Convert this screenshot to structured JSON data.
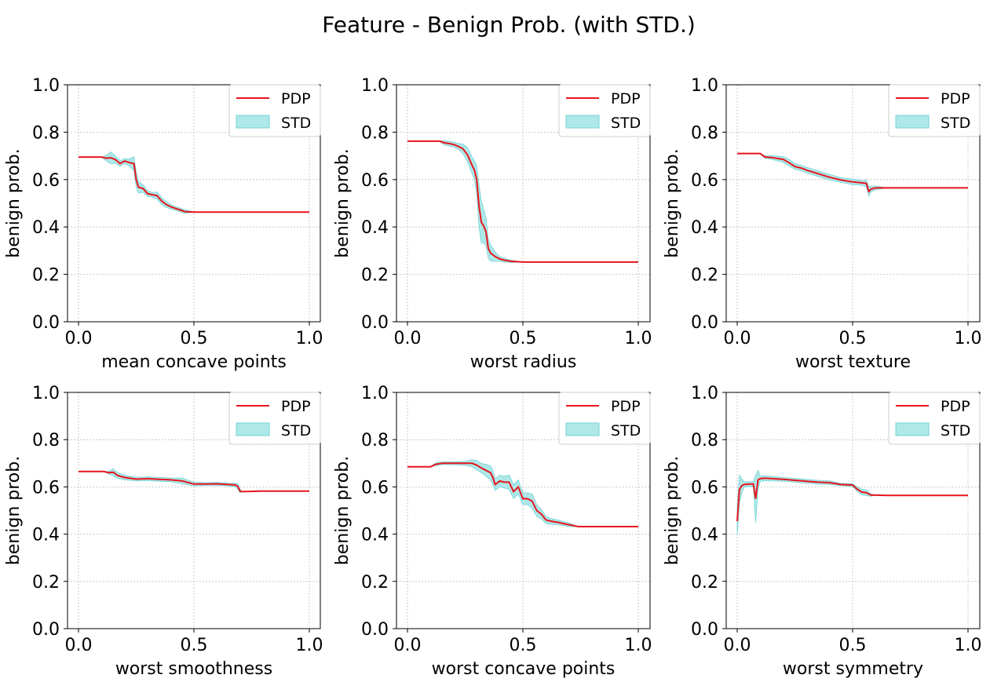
{
  "figure": {
    "title": "Feature - Benign Prob. (with STD.)"
  },
  "legend": {
    "pdp_label": "PDP",
    "std_label": "STD",
    "placement": "top-right"
  },
  "colors": {
    "pdp_line": "#e8141c",
    "std_fill": "#aee8e8",
    "std_edge": "#76d2d6",
    "axes": "#000000",
    "grid": "#bdbdbd"
  },
  "chart_data": [
    {
      "type": "line",
      "xlabel": "mean concave points",
      "ylabel": "benign prob.",
      "xlim": [
        0.0,
        1.0
      ],
      "ylim": [
        0.0,
        1.0
      ],
      "xticks": [
        "0.0",
        "0.5",
        "1.0"
      ],
      "yticks": [
        "0.0",
        "0.2",
        "0.4",
        "0.6",
        "0.8",
        "1.0"
      ],
      "grid": true,
      "series": [
        {
          "name": "PDP",
          "x": [
            0.0,
            0.1,
            0.12,
            0.14,
            0.16,
            0.18,
            0.2,
            0.22,
            0.24,
            0.25,
            0.26,
            0.28,
            0.3,
            0.32,
            0.34,
            0.36,
            0.38,
            0.4,
            0.42,
            0.44,
            0.46,
            0.5,
            1.0
          ],
          "y": [
            0.695,
            0.695,
            0.69,
            0.692,
            0.684,
            0.668,
            0.678,
            0.672,
            0.667,
            0.6,
            0.568,
            0.562,
            0.54,
            0.536,
            0.532,
            0.51,
            0.495,
            0.485,
            0.478,
            0.472,
            0.465,
            0.463,
            0.463
          ],
          "std": [
            0.0,
            0.0,
            0.012,
            0.025,
            0.015,
            0.012,
            0.01,
            0.015,
            0.03,
            0.03,
            0.025,
            0.015,
            0.012,
            0.01,
            0.015,
            0.015,
            0.012,
            0.01,
            0.008,
            0.008,
            0.008,
            0.0,
            0.0
          ]
        }
      ]
    },
    {
      "type": "line",
      "xlabel": "worst radius",
      "ylabel": "benign prob.",
      "xlim": [
        0.0,
        1.0
      ],
      "ylim": [
        0.0,
        1.0
      ],
      "xticks": [
        "0.0",
        "0.5",
        "1.0"
      ],
      "yticks": [
        "0.0",
        "0.2",
        "0.4",
        "0.6",
        "0.8",
        "1.0"
      ],
      "grid": true,
      "series": [
        {
          "name": "PDP",
          "x": [
            0.0,
            0.14,
            0.16,
            0.18,
            0.2,
            0.22,
            0.24,
            0.26,
            0.28,
            0.29,
            0.3,
            0.31,
            0.32,
            0.33,
            0.34,
            0.35,
            0.36,
            0.38,
            0.4,
            0.42,
            0.45,
            0.5,
            1.0
          ],
          "y": [
            0.762,
            0.762,
            0.755,
            0.752,
            0.748,
            0.74,
            0.73,
            0.705,
            0.66,
            0.64,
            0.6,
            0.49,
            0.42,
            0.405,
            0.38,
            0.31,
            0.29,
            0.275,
            0.265,
            0.26,
            0.255,
            0.252,
            0.252
          ],
          "std": [
            0.0,
            0.0,
            0.01,
            0.01,
            0.01,
            0.012,
            0.02,
            0.03,
            0.035,
            0.04,
            0.06,
            0.09,
            0.09,
            0.07,
            0.06,
            0.04,
            0.035,
            0.02,
            0.01,
            0.008,
            0.005,
            0.0,
            0.0
          ]
        }
      ]
    },
    {
      "type": "line",
      "xlabel": "worst texture",
      "ylabel": "benign prob.",
      "xlim": [
        0.0,
        1.0
      ],
      "ylim": [
        0.0,
        1.0
      ],
      "xticks": [
        "0.0",
        "0.5",
        "1.0"
      ],
      "yticks": [
        "0.0",
        "0.2",
        "0.4",
        "0.6",
        "0.8",
        "1.0"
      ],
      "grid": true,
      "series": [
        {
          "name": "PDP",
          "x": [
            0.0,
            0.1,
            0.12,
            0.15,
            0.2,
            0.23,
            0.25,
            0.28,
            0.3,
            0.35,
            0.4,
            0.45,
            0.5,
            0.55,
            0.56,
            0.57,
            0.58,
            0.6,
            0.65,
            1.0
          ],
          "y": [
            0.71,
            0.71,
            0.695,
            0.693,
            0.685,
            0.668,
            0.655,
            0.648,
            0.64,
            0.625,
            0.61,
            0.598,
            0.59,
            0.585,
            0.583,
            0.55,
            0.56,
            0.565,
            0.565,
            0.565
          ],
          "std": [
            0.0,
            0.0,
            0.005,
            0.008,
            0.012,
            0.014,
            0.012,
            0.012,
            0.012,
            0.012,
            0.012,
            0.01,
            0.012,
            0.01,
            0.015,
            0.02,
            0.012,
            0.008,
            0.0,
            0.0
          ]
        }
      ]
    },
    {
      "type": "line",
      "xlabel": "worst smoothness",
      "ylabel": "benign prob.",
      "xlim": [
        0.0,
        1.0
      ],
      "ylim": [
        0.0,
        1.0
      ],
      "xticks": [
        "0.0",
        "0.5",
        "1.0"
      ],
      "yticks": [
        "0.0",
        "0.2",
        "0.4",
        "0.6",
        "0.8",
        "1.0"
      ],
      "grid": true,
      "series": [
        {
          "name": "PDP",
          "x": [
            0.0,
            0.11,
            0.13,
            0.15,
            0.17,
            0.2,
            0.25,
            0.3,
            0.35,
            0.4,
            0.45,
            0.5,
            0.55,
            0.6,
            0.65,
            0.68,
            0.69,
            0.7,
            0.71,
            0.8,
            1.0
          ],
          "y": [
            0.665,
            0.665,
            0.66,
            0.662,
            0.648,
            0.64,
            0.633,
            0.635,
            0.632,
            0.63,
            0.625,
            0.612,
            0.612,
            0.613,
            0.61,
            0.608,
            0.602,
            0.582,
            0.58,
            0.582,
            0.582
          ],
          "std": [
            0.0,
            0.0,
            0.005,
            0.015,
            0.012,
            0.01,
            0.008,
            0.008,
            0.008,
            0.008,
            0.012,
            0.008,
            0.006,
            0.006,
            0.006,
            0.008,
            0.012,
            0.008,
            0.0,
            0.0,
            0.0
          ]
        }
      ]
    },
    {
      "type": "line",
      "xlabel": "worst concave points",
      "ylabel": "benign prob.",
      "xlim": [
        0.0,
        1.0
      ],
      "ylim": [
        0.0,
        1.0
      ],
      "xticks": [
        "0.0",
        "0.5",
        "1.0"
      ],
      "yticks": [
        "0.0",
        "0.2",
        "0.4",
        "0.6",
        "0.8",
        "1.0"
      ],
      "grid": true,
      "series": [
        {
          "name": "PDP",
          "x": [
            0.0,
            0.1,
            0.12,
            0.15,
            0.2,
            0.25,
            0.28,
            0.3,
            0.32,
            0.34,
            0.36,
            0.37,
            0.38,
            0.4,
            0.42,
            0.44,
            0.46,
            0.48,
            0.5,
            0.52,
            0.54,
            0.56,
            0.58,
            0.6,
            0.62,
            0.65,
            0.7,
            0.74,
            1.0
          ],
          "y": [
            0.685,
            0.685,
            0.695,
            0.7,
            0.7,
            0.7,
            0.7,
            0.692,
            0.68,
            0.67,
            0.66,
            0.64,
            0.61,
            0.625,
            0.62,
            0.62,
            0.58,
            0.6,
            0.55,
            0.55,
            0.54,
            0.5,
            0.485,
            0.46,
            0.455,
            0.45,
            0.44,
            0.432,
            0.432
          ],
          "std": [
            0.0,
            0.0,
            0.005,
            0.006,
            0.006,
            0.008,
            0.015,
            0.02,
            0.02,
            0.025,
            0.03,
            0.03,
            0.025,
            0.025,
            0.025,
            0.03,
            0.03,
            0.03,
            0.025,
            0.025,
            0.03,
            0.025,
            0.02,
            0.015,
            0.012,
            0.01,
            0.008,
            0.0,
            0.0
          ]
        }
      ]
    },
    {
      "type": "line",
      "xlabel": "worst symmetry",
      "ylabel": "benign prob.",
      "xlim": [
        0.0,
        1.0
      ],
      "ylim": [
        0.0,
        1.0
      ],
      "xticks": [
        "0.0",
        "0.5",
        "1.0"
      ],
      "yticks": [
        "0.0",
        "0.2",
        "0.4",
        "0.6",
        "0.8",
        "1.0"
      ],
      "grid": true,
      "series": [
        {
          "name": "PDP",
          "x": [
            0.0,
            0.01,
            0.02,
            0.03,
            0.05,
            0.07,
            0.08,
            0.09,
            0.1,
            0.12,
            0.15,
            0.2,
            0.25,
            0.3,
            0.35,
            0.4,
            0.45,
            0.5,
            0.52,
            0.54,
            0.56,
            0.58,
            0.6,
            0.65,
            0.7,
            1.0
          ],
          "y": [
            0.455,
            0.59,
            0.605,
            0.61,
            0.612,
            0.612,
            0.55,
            0.63,
            0.635,
            0.637,
            0.635,
            0.632,
            0.628,
            0.624,
            0.62,
            0.618,
            0.61,
            0.608,
            0.59,
            0.578,
            0.575,
            0.565,
            0.565,
            0.564,
            0.564,
            0.564
          ],
          "std": [
            0.06,
            0.06,
            0.03,
            0.012,
            0.01,
            0.01,
            0.1,
            0.04,
            0.012,
            0.01,
            0.01,
            0.008,
            0.008,
            0.008,
            0.008,
            0.008,
            0.005,
            0.006,
            0.01,
            0.012,
            0.012,
            0.005,
            0.0,
            0.0,
            0.0,
            0.0
          ]
        }
      ]
    }
  ]
}
